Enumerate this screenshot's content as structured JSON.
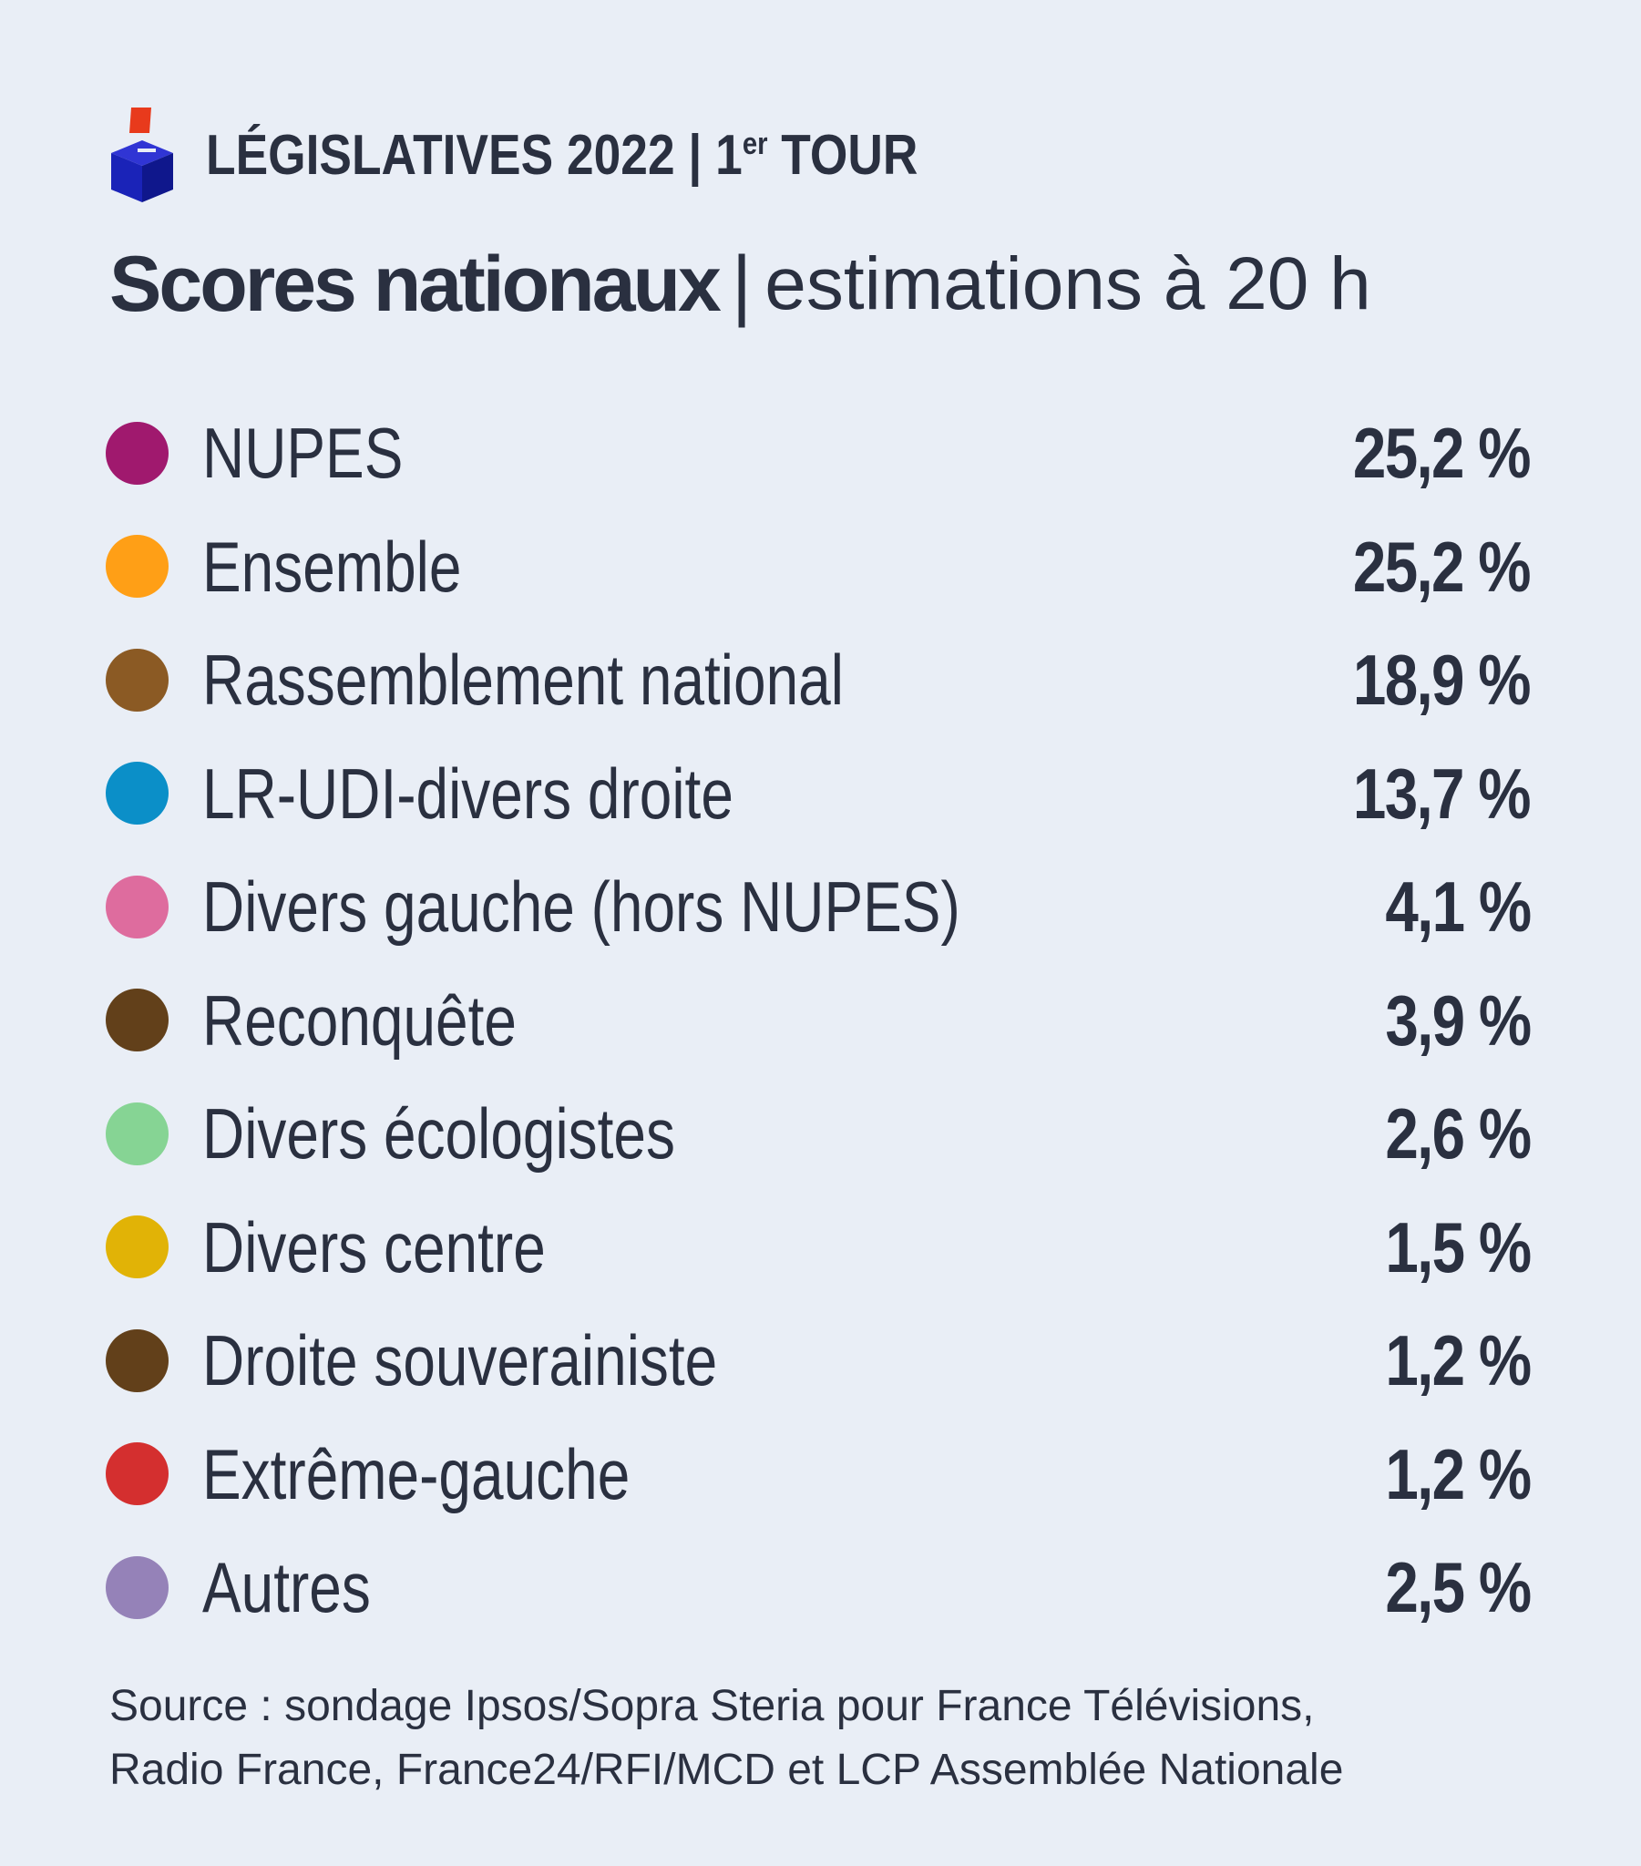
{
  "header": {
    "kicker_main": "LÉGISLATIVES 2022 | 1",
    "kicker_sup": "er",
    "kicker_end": " TOUR",
    "title": "Scores nationaux",
    "separator": "|",
    "subtitle": "estimations à 20 h"
  },
  "colors": {
    "background": "#e9eef6",
    "text": "#2a3040",
    "logo_blue": "#1a23b8",
    "logo_red": "#e83a1c"
  },
  "chart_data": {
    "type": "table",
    "title": "Scores nationaux",
    "subtitle": "estimations à 20 h",
    "rows": [
      {
        "label": "NUPES",
        "value": 25.2,
        "display": "25,2 %",
        "color": "#a0196e"
      },
      {
        "label": "Ensemble",
        "value": 25.2,
        "display": "25,2 %",
        "color": "#ff9f16"
      },
      {
        "label": "Rassemblement national",
        "value": 18.9,
        "display": "18,9 %",
        "color": "#8b5a24"
      },
      {
        "label": "LR-UDI-divers droite",
        "value": 13.7,
        "display": "13,7 %",
        "color": "#0b8fc8"
      },
      {
        "label": "Divers gauche (hors NUPES)",
        "value": 4.1,
        "display": "4,1 %",
        "color": "#de6c9e"
      },
      {
        "label": "Reconquête",
        "value": 3.9,
        "display": "3,9 %",
        "color": "#62401a"
      },
      {
        "label": "Divers écologistes",
        "value": 2.6,
        "display": "2,6 %",
        "color": "#86d494"
      },
      {
        "label": "Divers centre",
        "value": 1.5,
        "display": "1,5 %",
        "color": "#e1b306"
      },
      {
        "label": "Droite souverainiste",
        "value": 1.2,
        "display": "1,2 %",
        "color": "#62401a"
      },
      {
        "label": "Extrême-gauche",
        "value": 1.2,
        "display": "1,2 %",
        "color": "#d42f2f"
      },
      {
        "label": "Autres",
        "value": 2.5,
        "display": "2,5 %",
        "color": "#9582b8"
      }
    ]
  },
  "source": {
    "line1": "Source : sondage Ipsos/Sopra Steria pour France Télévisions,",
    "line2": "Radio France, France24/RFI/MCD et LCP Assemblée Nationale"
  }
}
